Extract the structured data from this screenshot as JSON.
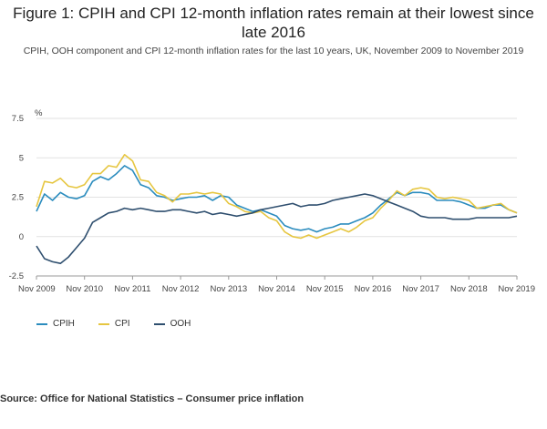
{
  "figure": {
    "title": "Figure 1: CPIH and CPI 12-month inflation rates remain at their lowest since late 2016",
    "subtitle": "CPIH, OOH component and CPI 12-month inflation rates for the last 10 years, UK, November 2009 to November 2019",
    "source": "Source: Office for National Statistics – Consumer price inflation"
  },
  "chart_data": {
    "type": "line",
    "ylabel": "%",
    "ylim": [
      -2.5,
      7.5
    ],
    "yticks": [
      "7.5",
      "5",
      "2.5",
      "0",
      "-2.5"
    ],
    "xlim": [
      "2009-11",
      "2019-11"
    ],
    "xticks": [
      "Nov 2009",
      "Nov 2010",
      "Nov 2011",
      "Nov 2012",
      "Nov 2013",
      "Nov 2014",
      "Nov 2015",
      "Nov 2016",
      "Nov 2017",
      "Nov 2018",
      "Nov 2019"
    ],
    "grid": true,
    "legend_position": "bottom-left",
    "series": [
      {
        "name": "CPIH",
        "color": "#2b8cbe",
        "points": [
          [
            "2009-11",
            1.6
          ],
          [
            "2010-01",
            2.7
          ],
          [
            "2010-03",
            2.3
          ],
          [
            "2010-05",
            2.8
          ],
          [
            "2010-07",
            2.5
          ],
          [
            "2010-09",
            2.4
          ],
          [
            "2010-11",
            2.6
          ],
          [
            "2011-01",
            3.5
          ],
          [
            "2011-03",
            3.8
          ],
          [
            "2011-05",
            3.6
          ],
          [
            "2011-07",
            4.0
          ],
          [
            "2011-09",
            4.5
          ],
          [
            "2011-11",
            4.2
          ],
          [
            "2012-01",
            3.3
          ],
          [
            "2012-03",
            3.1
          ],
          [
            "2012-05",
            2.6
          ],
          [
            "2012-07",
            2.5
          ],
          [
            "2012-09",
            2.3
          ],
          [
            "2012-11",
            2.4
          ],
          [
            "2013-01",
            2.5
          ],
          [
            "2013-03",
            2.5
          ],
          [
            "2013-05",
            2.6
          ],
          [
            "2013-07",
            2.3
          ],
          [
            "2013-09",
            2.6
          ],
          [
            "2013-11",
            2.5
          ],
          [
            "2014-01",
            2.0
          ],
          [
            "2014-03",
            1.8
          ],
          [
            "2014-05",
            1.6
          ],
          [
            "2014-07",
            1.7
          ],
          [
            "2014-09",
            1.5
          ],
          [
            "2014-11",
            1.3
          ],
          [
            "2015-01",
            0.7
          ],
          [
            "2015-03",
            0.5
          ],
          [
            "2015-05",
            0.4
          ],
          [
            "2015-07",
            0.5
          ],
          [
            "2015-09",
            0.3
          ],
          [
            "2015-11",
            0.5
          ],
          [
            "2016-01",
            0.6
          ],
          [
            "2016-03",
            0.8
          ],
          [
            "2016-05",
            0.8
          ],
          [
            "2016-07",
            1.0
          ],
          [
            "2016-09",
            1.2
          ],
          [
            "2016-11",
            1.5
          ],
          [
            "2017-01",
            2.0
          ],
          [
            "2017-03",
            2.4
          ],
          [
            "2017-05",
            2.8
          ],
          [
            "2017-07",
            2.6
          ],
          [
            "2017-09",
            2.8
          ],
          [
            "2017-11",
            2.8
          ],
          [
            "2018-01",
            2.7
          ],
          [
            "2018-03",
            2.3
          ],
          [
            "2018-05",
            2.3
          ],
          [
            "2018-07",
            2.3
          ],
          [
            "2018-09",
            2.2
          ],
          [
            "2018-11",
            2.0
          ],
          [
            "2019-01",
            1.8
          ],
          [
            "2019-03",
            1.8
          ],
          [
            "2019-05",
            2.0
          ],
          [
            "2019-07",
            2.0
          ],
          [
            "2019-09",
            1.7
          ],
          [
            "2019-11",
            1.5
          ]
        ]
      },
      {
        "name": "CPI",
        "color": "#e6c640",
        "points": [
          [
            "2009-11",
            1.9
          ],
          [
            "2010-01",
            3.5
          ],
          [
            "2010-03",
            3.4
          ],
          [
            "2010-05",
            3.7
          ],
          [
            "2010-07",
            3.2
          ],
          [
            "2010-09",
            3.1
          ],
          [
            "2010-11",
            3.3
          ],
          [
            "2011-01",
            4.0
          ],
          [
            "2011-03",
            4.0
          ],
          [
            "2011-05",
            4.5
          ],
          [
            "2011-07",
            4.4
          ],
          [
            "2011-09",
            5.2
          ],
          [
            "2011-11",
            4.8
          ],
          [
            "2012-01",
            3.6
          ],
          [
            "2012-03",
            3.5
          ],
          [
            "2012-05",
            2.8
          ],
          [
            "2012-07",
            2.6
          ],
          [
            "2012-09",
            2.2
          ],
          [
            "2012-11",
            2.7
          ],
          [
            "2013-01",
            2.7
          ],
          [
            "2013-03",
            2.8
          ],
          [
            "2013-05",
            2.7
          ],
          [
            "2013-07",
            2.8
          ],
          [
            "2013-09",
            2.7
          ],
          [
            "2013-11",
            2.1
          ],
          [
            "2014-01",
            1.9
          ],
          [
            "2014-03",
            1.6
          ],
          [
            "2014-05",
            1.5
          ],
          [
            "2014-07",
            1.6
          ],
          [
            "2014-09",
            1.2
          ],
          [
            "2014-11",
            1.0
          ],
          [
            "2015-01",
            0.3
          ],
          [
            "2015-03",
            0.0
          ],
          [
            "2015-05",
            -0.1
          ],
          [
            "2015-07",
            0.1
          ],
          [
            "2015-09",
            -0.1
          ],
          [
            "2015-11",
            0.1
          ],
          [
            "2016-01",
            0.3
          ],
          [
            "2016-03",
            0.5
          ],
          [
            "2016-05",
            0.3
          ],
          [
            "2016-07",
            0.6
          ],
          [
            "2016-09",
            1.0
          ],
          [
            "2016-11",
            1.2
          ],
          [
            "2017-01",
            1.8
          ],
          [
            "2017-03",
            2.3
          ],
          [
            "2017-05",
            2.9
          ],
          [
            "2017-07",
            2.6
          ],
          [
            "2017-09",
            3.0
          ],
          [
            "2017-11",
            3.1
          ],
          [
            "2018-01",
            3.0
          ],
          [
            "2018-03",
            2.5
          ],
          [
            "2018-05",
            2.4
          ],
          [
            "2018-07",
            2.5
          ],
          [
            "2018-09",
            2.4
          ],
          [
            "2018-11",
            2.3
          ],
          [
            "2019-01",
            1.8
          ],
          [
            "2019-03",
            1.9
          ],
          [
            "2019-05",
            2.0
          ],
          [
            "2019-07",
            2.1
          ],
          [
            "2019-09",
            1.7
          ],
          [
            "2019-11",
            1.5
          ]
        ]
      },
      {
        "name": "OOH",
        "color": "#2f4f6f",
        "points": [
          [
            "2009-11",
            -0.6
          ],
          [
            "2010-01",
            -1.4
          ],
          [
            "2010-03",
            -1.6
          ],
          [
            "2010-05",
            -1.7
          ],
          [
            "2010-07",
            -1.3
          ],
          [
            "2010-09",
            -0.7
          ],
          [
            "2010-11",
            -0.1
          ],
          [
            "2011-01",
            0.9
          ],
          [
            "2011-03",
            1.2
          ],
          [
            "2011-05",
            1.5
          ],
          [
            "2011-07",
            1.6
          ],
          [
            "2011-09",
            1.8
          ],
          [
            "2011-11",
            1.7
          ],
          [
            "2012-01",
            1.8
          ],
          [
            "2012-03",
            1.7
          ],
          [
            "2012-05",
            1.6
          ],
          [
            "2012-07",
            1.6
          ],
          [
            "2012-09",
            1.7
          ],
          [
            "2012-11",
            1.7
          ],
          [
            "2013-01",
            1.6
          ],
          [
            "2013-03",
            1.5
          ],
          [
            "2013-05",
            1.6
          ],
          [
            "2013-07",
            1.4
          ],
          [
            "2013-09",
            1.5
          ],
          [
            "2013-11",
            1.4
          ],
          [
            "2014-01",
            1.3
          ],
          [
            "2014-03",
            1.4
          ],
          [
            "2014-05",
            1.5
          ],
          [
            "2014-07",
            1.7
          ],
          [
            "2014-09",
            1.8
          ],
          [
            "2014-11",
            1.9
          ],
          [
            "2015-01",
            2.0
          ],
          [
            "2015-03",
            2.1
          ],
          [
            "2015-05",
            1.9
          ],
          [
            "2015-07",
            2.0
          ],
          [
            "2015-09",
            2.0
          ],
          [
            "2015-11",
            2.1
          ],
          [
            "2016-01",
            2.3
          ],
          [
            "2016-03",
            2.4
          ],
          [
            "2016-05",
            2.5
          ],
          [
            "2016-07",
            2.6
          ],
          [
            "2016-09",
            2.7
          ],
          [
            "2016-11",
            2.6
          ],
          [
            "2017-01",
            2.4
          ],
          [
            "2017-03",
            2.2
          ],
          [
            "2017-05",
            2.0
          ],
          [
            "2017-07",
            1.8
          ],
          [
            "2017-09",
            1.6
          ],
          [
            "2017-11",
            1.3
          ],
          [
            "2018-01",
            1.2
          ],
          [
            "2018-03",
            1.2
          ],
          [
            "2018-05",
            1.2
          ],
          [
            "2018-07",
            1.1
          ],
          [
            "2018-09",
            1.1
          ],
          [
            "2018-11",
            1.1
          ],
          [
            "2019-01",
            1.2
          ],
          [
            "2019-03",
            1.2
          ],
          [
            "2019-05",
            1.2
          ],
          [
            "2019-07",
            1.2
          ],
          [
            "2019-09",
            1.2
          ],
          [
            "2019-11",
            1.3
          ]
        ]
      }
    ]
  }
}
